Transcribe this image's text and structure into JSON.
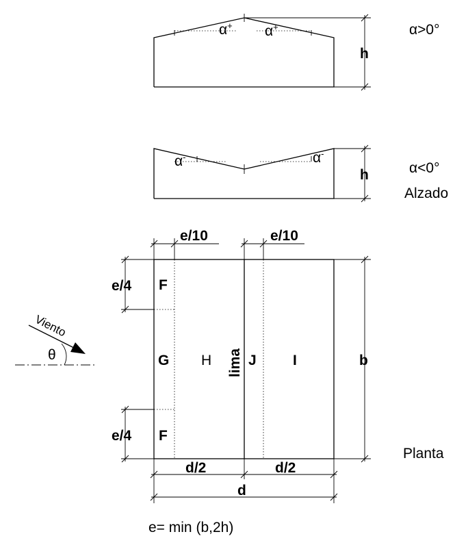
{
  "elevation_top": {
    "alpha_label_left": "α",
    "alpha_label_right": "α",
    "sign": "+",
    "height_label": "h",
    "condition": "α>0°"
  },
  "elevation_bottom": {
    "alpha_label_left": "α",
    "alpha_label_right": "α",
    "sign": "-",
    "height_label": "h",
    "condition": "α<0°",
    "view_label": "Alzado"
  },
  "plan": {
    "zone_f_top": "F",
    "zone_f_bottom": "F",
    "zone_g": "G",
    "zone_h": "H",
    "ridge_label": "lima",
    "zone_j": "J",
    "zone_i": "I",
    "dim_e10_left": "e/10",
    "dim_e10_right": "e/10",
    "dim_e4_top": "e/4",
    "dim_e4_bottom": "e/4",
    "dim_b": "b",
    "dim_d2_left": "d/2",
    "dim_d2_right": "d/2",
    "dim_d": "d",
    "view_label": "Planta",
    "formula": "e= min (b,2h)"
  },
  "wind": {
    "label": "Viento",
    "angle_label": "θ"
  }
}
